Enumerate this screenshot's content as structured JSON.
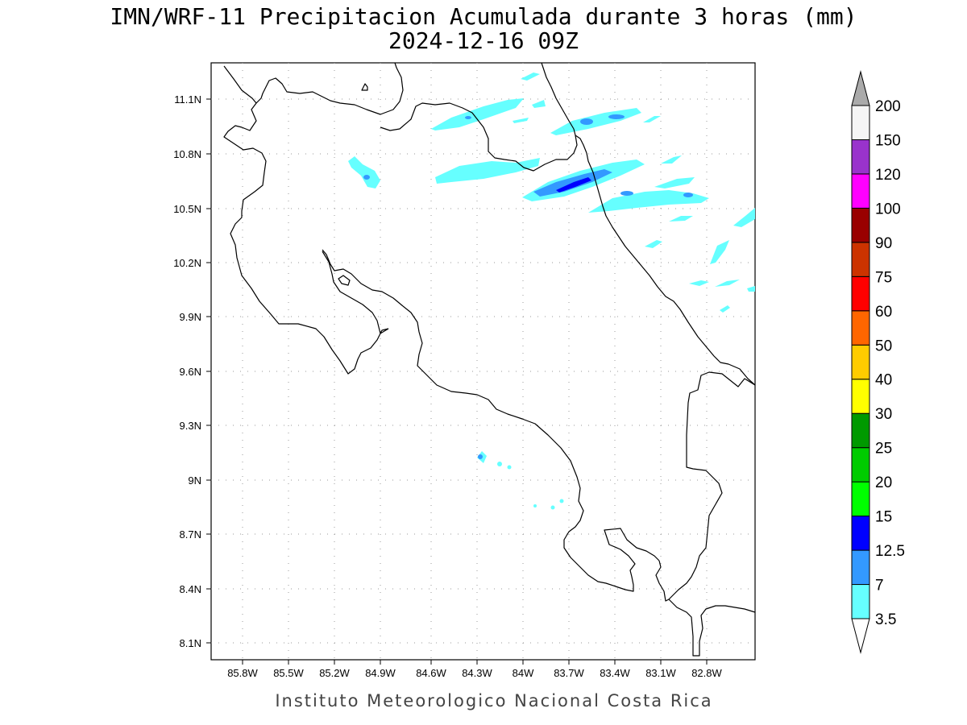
{
  "title": {
    "line1": "IMN/WRF-11 Precipitacion Acumulada durante 3 horas (mm)",
    "line2": "2024-12-16 09Z"
  },
  "footer": "Instituto Meteorologico Nacional Costa Rica",
  "map": {
    "lon_range": [
      -85.95,
      -82.95
    ],
    "lat_range": [
      8.0,
      11.3
    ],
    "lon_ticks": [
      "85.8W",
      "85.5W",
      "85.2W",
      "84.9W",
      "84.6W",
      "84.3W",
      "84W",
      "83.7W",
      "83.4W",
      "83.1W",
      "82.8W"
    ],
    "lat_ticks": [
      "11.1N",
      "10.8N",
      "10.5N",
      "10.2N",
      "9.9N",
      "9.6N",
      "9.3N",
      "9N",
      "8.7N",
      "8.4N",
      "8.1N"
    ],
    "grid": "dotted",
    "coastline_color": "#000000"
  },
  "colorbar": {
    "levels": [
      {
        "label": "3.5",
        "color": "#66ffff"
      },
      {
        "label": "7",
        "color": "#3399ff"
      },
      {
        "label": "12.5",
        "color": "#0000ff"
      },
      {
        "label": "15",
        "color": "#00ff00"
      },
      {
        "label": "20",
        "color": "#00cc00"
      },
      {
        "label": "25",
        "color": "#009900"
      },
      {
        "label": "30",
        "color": "#ffff00"
      },
      {
        "label": "40",
        "color": "#ffcc00"
      },
      {
        "label": "50",
        "color": "#ff6600"
      },
      {
        "label": "60",
        "color": "#ff0000"
      },
      {
        "label": "75",
        "color": "#cc3300"
      },
      {
        "label": "90",
        "color": "#990000"
      },
      {
        "label": "100",
        "color": "#ff00ff"
      },
      {
        "label": "120",
        "color": "#9933cc"
      },
      {
        "label": "150",
        "color": "#f5f5f5"
      },
      {
        "label": "200",
        "color": "#aaaaaa"
      }
    ]
  }
}
